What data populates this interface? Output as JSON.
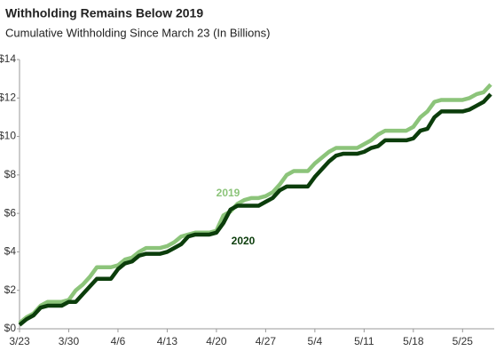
{
  "chart_data": {
    "type": "line",
    "title": "Withholding Remains Below 2019",
    "subtitle": "Cumulative Withholding Since March 23 (In Billions)",
    "categories": [
      "3/23",
      null,
      null,
      null,
      null,
      null,
      null,
      "3/30",
      null,
      null,
      null,
      null,
      null,
      null,
      "4/6",
      null,
      null,
      null,
      null,
      null,
      null,
      "4/13",
      null,
      null,
      null,
      null,
      null,
      null,
      "4/20",
      null,
      null,
      null,
      null,
      null,
      null,
      "4/27",
      null,
      null,
      null,
      null,
      null,
      null,
      "5/4",
      null,
      null,
      null,
      null,
      null,
      null,
      "5/11",
      null,
      null,
      null,
      null,
      null,
      null,
      "5/18",
      null,
      null,
      null,
      null,
      null,
      null,
      "5/25",
      null,
      null,
      null,
      null
    ],
    "series": [
      {
        "name": "2019",
        "color": "#8cc47a",
        "values": [
          0.3,
          0.6,
          0.8,
          1.2,
          1.4,
          1.4,
          1.4,
          1.5,
          2.0,
          2.3,
          2.7,
          3.2,
          3.2,
          3.2,
          3.3,
          3.6,
          3.7,
          4.0,
          4.2,
          4.2,
          4.2,
          4.3,
          4.5,
          4.8,
          4.9,
          5.0,
          5.0,
          5.0,
          5.1,
          5.9,
          6.1,
          6.5,
          6.7,
          6.8,
          6.8,
          6.9,
          7.1,
          7.5,
          8.0,
          8.2,
          8.2,
          8.2,
          8.6,
          8.9,
          9.2,
          9.4,
          9.4,
          9.4,
          9.4,
          9.6,
          9.8,
          10.1,
          10.3,
          10.3,
          10.3,
          10.3,
          10.5,
          11.0,
          11.3,
          11.8,
          11.9,
          11.9,
          11.9,
          11.9,
          12.0,
          12.2,
          12.3,
          12.7
        ]
      },
      {
        "name": "2020",
        "color": "#0b3d0b",
        "values": [
          0.2,
          0.5,
          0.7,
          1.1,
          1.2,
          1.2,
          1.2,
          1.4,
          1.4,
          1.8,
          2.2,
          2.6,
          2.6,
          2.6,
          3.1,
          3.4,
          3.5,
          3.8,
          3.9,
          3.9,
          3.9,
          4.0,
          4.2,
          4.4,
          4.8,
          4.9,
          4.9,
          4.9,
          5.0,
          5.5,
          6.2,
          6.4,
          6.4,
          6.4,
          6.4,
          6.6,
          6.8,
          7.2,
          7.4,
          7.4,
          7.4,
          7.4,
          7.9,
          8.3,
          8.7,
          9.0,
          9.1,
          9.1,
          9.1,
          9.2,
          9.4,
          9.5,
          9.8,
          9.8,
          9.8,
          9.8,
          9.9,
          10.3,
          10.4,
          11.0,
          11.3,
          11.3,
          11.3,
          11.3,
          11.4,
          11.6,
          11.8,
          12.2
        ]
      }
    ],
    "ylim": [
      0,
      14
    ],
    "yticks": [
      {
        "value": 0,
        "label": "$0"
      },
      {
        "value": 2,
        "label": "$2"
      },
      {
        "value": 4,
        "label": "$4"
      },
      {
        "value": 6,
        "label": "$6"
      },
      {
        "value": 8,
        "label": "$8"
      },
      {
        "value": 10,
        "label": "$10"
      },
      {
        "value": 12,
        "label": "$12"
      },
      {
        "value": 14,
        "label": "$14"
      }
    ]
  }
}
